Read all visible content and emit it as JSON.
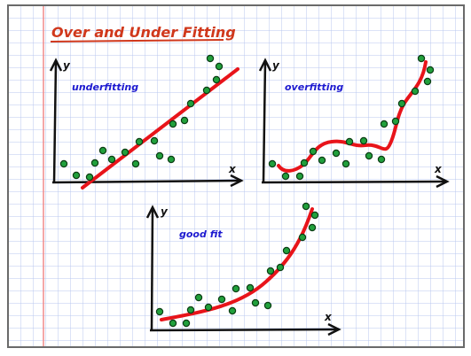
{
  "title": "Over and Under Fitting",
  "colors": {
    "title": "#d0381c",
    "label": "#1d1ad0",
    "curve": "#e8141a",
    "dot_fill": "#21a03c",
    "dot_stroke": "#0c3d14",
    "grid": "#b9c7ef",
    "margin_line": "#f08a8a",
    "axis": "#111111",
    "frame": "#6a6a6a"
  },
  "axis_labels": {
    "x": "x",
    "y": "y"
  },
  "panels": {
    "underfitting": {
      "label": "underfitting",
      "fit_type": "linear"
    },
    "overfitting": {
      "label": "overfitting",
      "fit_type": "wiggly-through-points"
    },
    "goodfit": {
      "label": "good fit",
      "fit_type": "exponential"
    }
  }
}
